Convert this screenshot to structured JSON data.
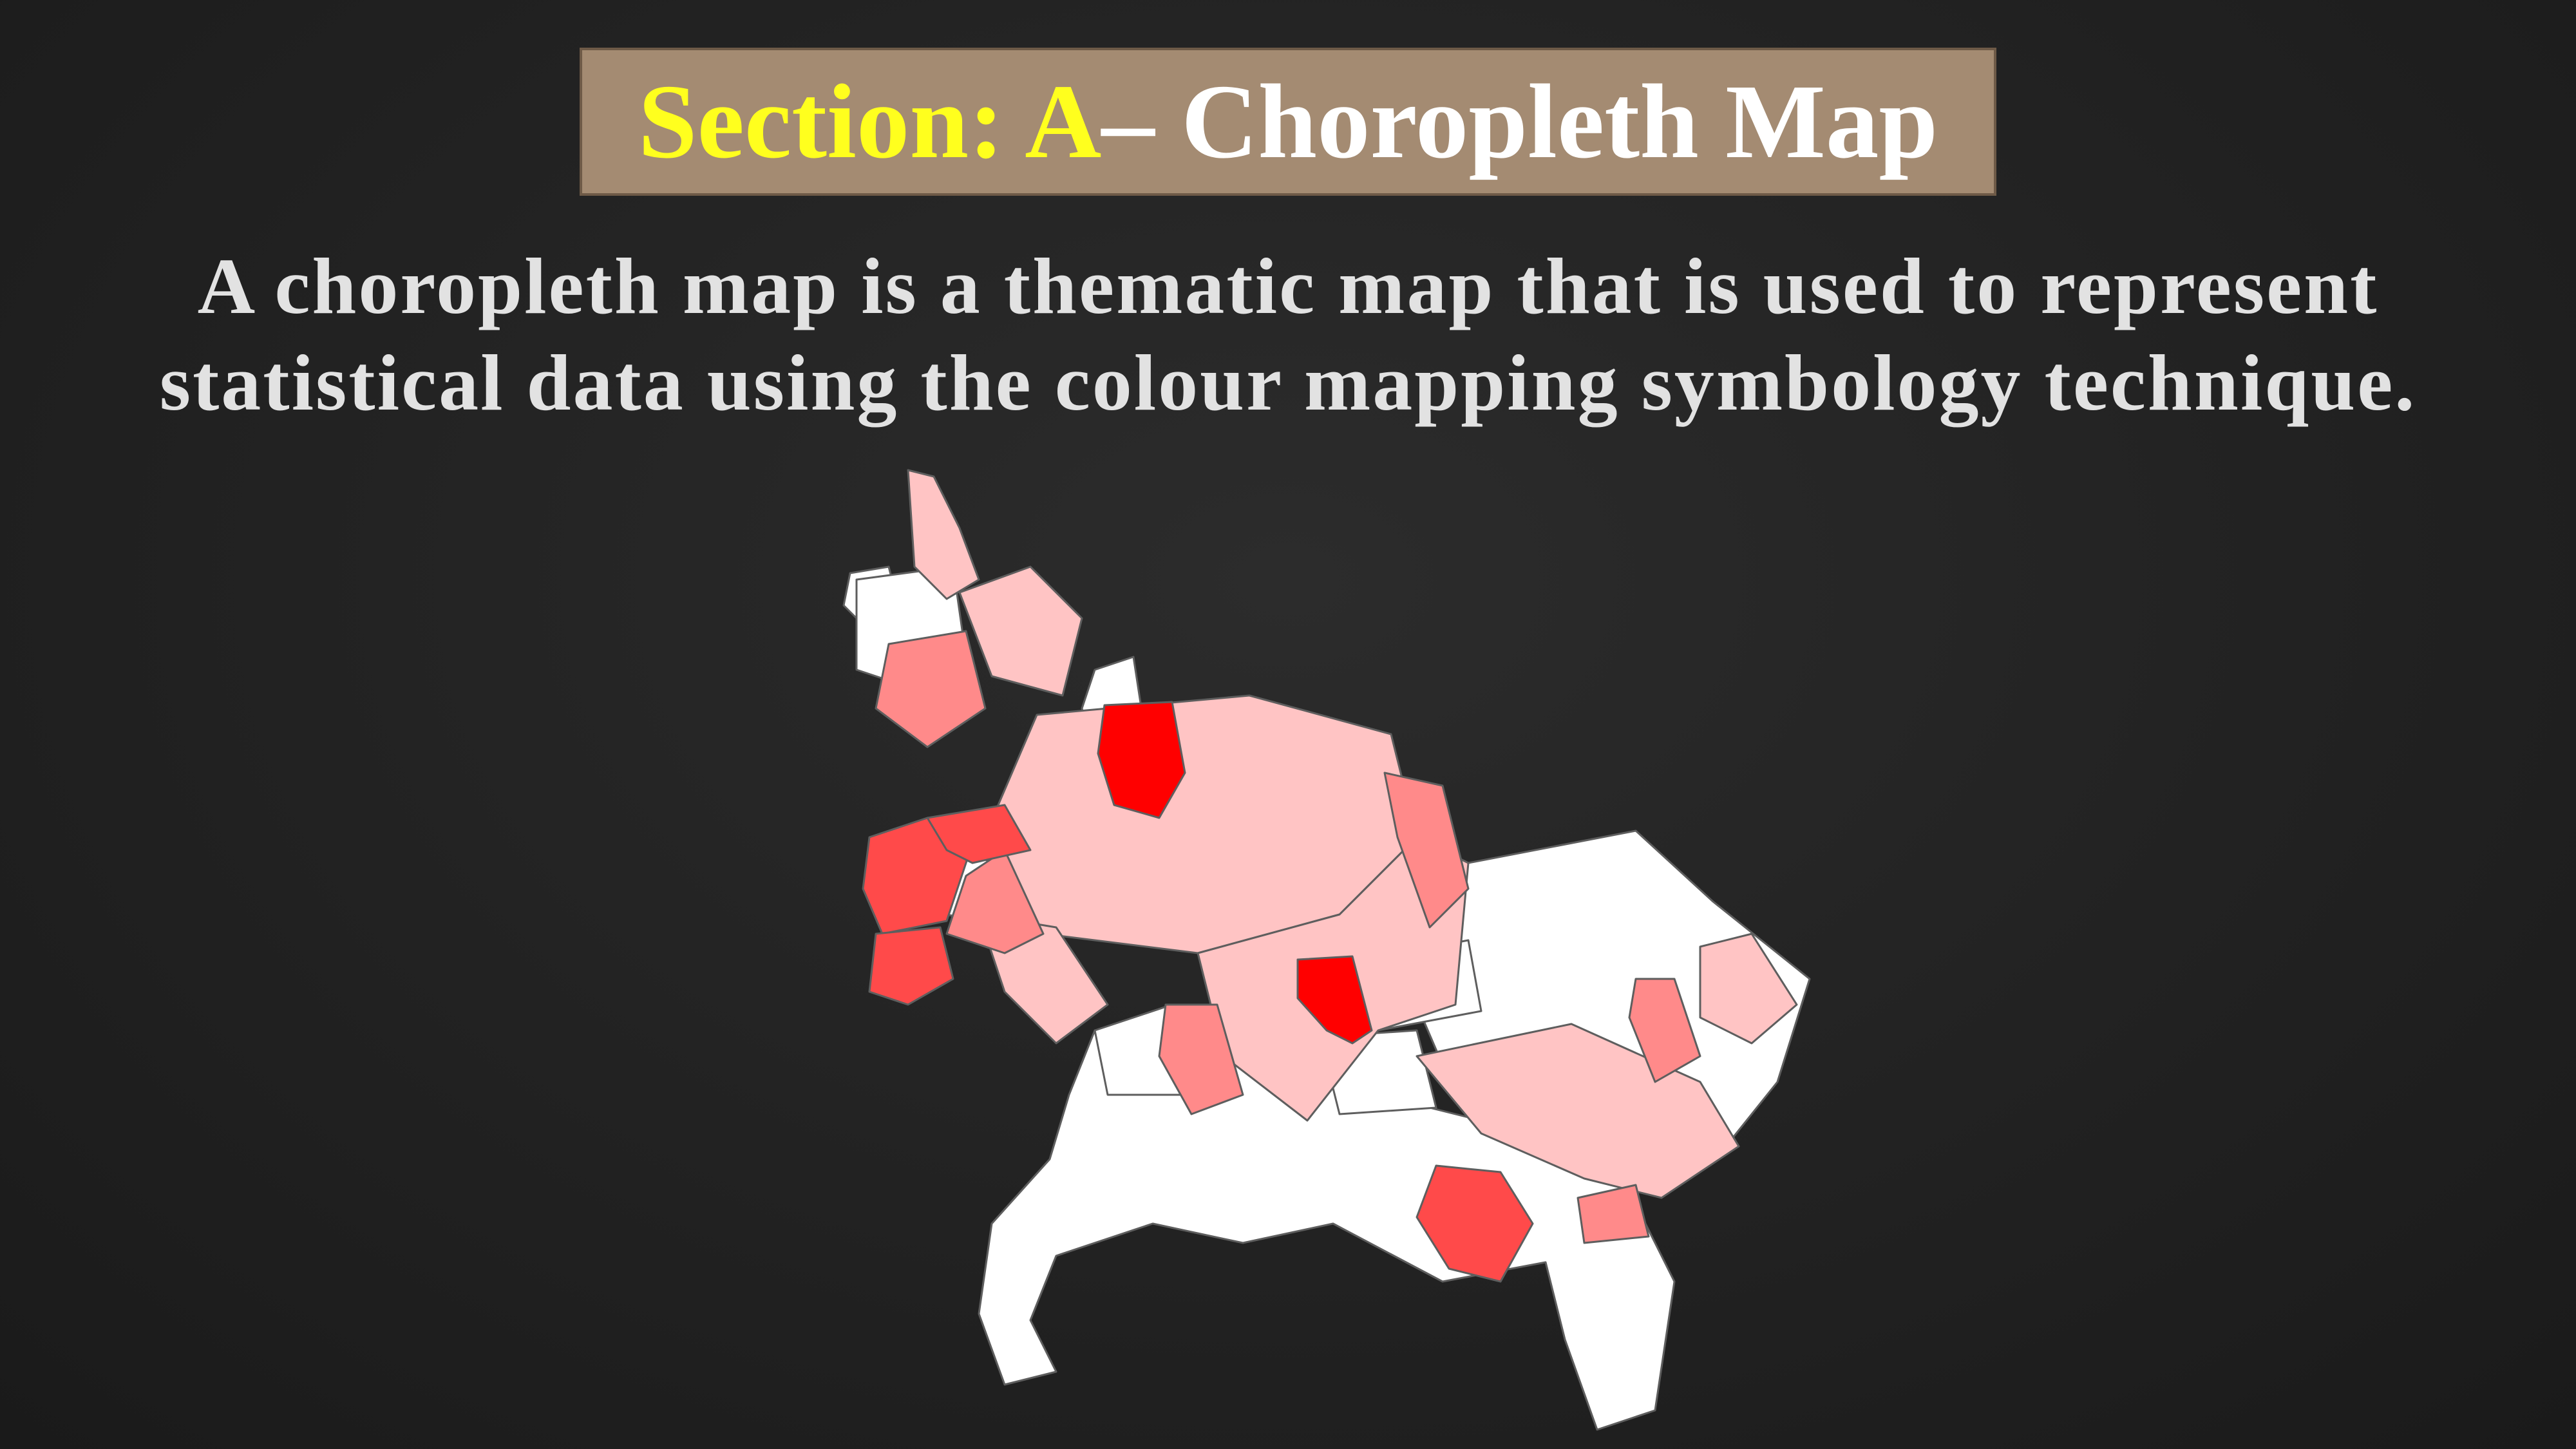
{
  "title": {
    "prefix": "Section: A",
    "main": "– Choropleth Map"
  },
  "description": "A choropleth map is a thematic map that is used to represent statistical data using the colour mapping symbology technique.",
  "map": {
    "colors": {
      "none": "#ffffff",
      "light": "#ffc4c4",
      "medium": "#ff8a8a",
      "strong": "#ff4a4a",
      "highest": "#ff0000",
      "border": "#5e5e5e"
    }
  }
}
